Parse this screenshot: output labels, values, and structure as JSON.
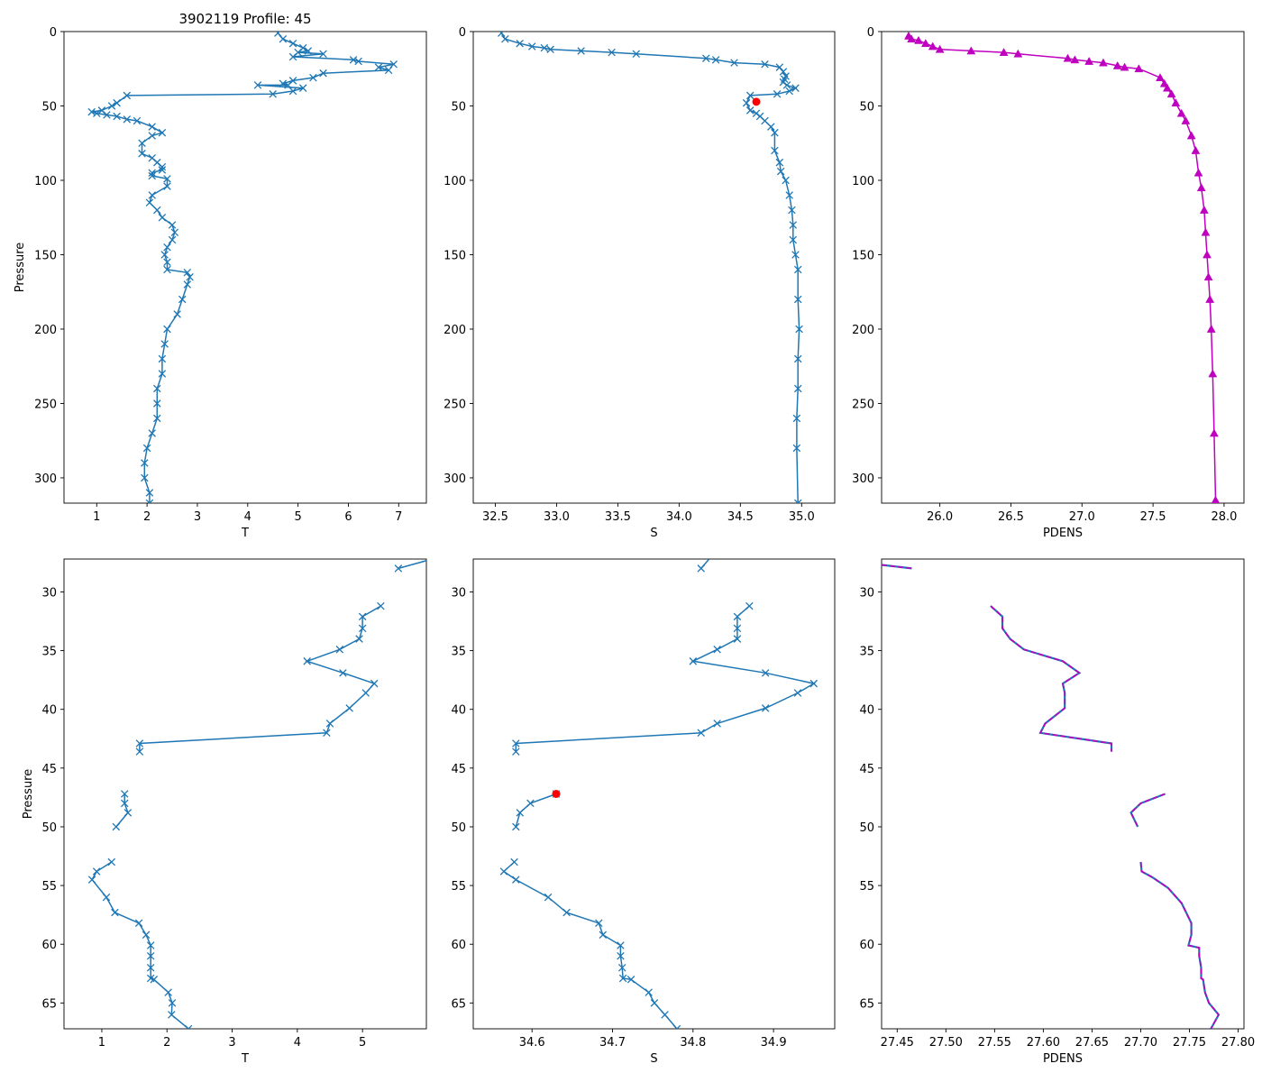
{
  "figure_title": "3902119 Profile: 45",
  "colors": {
    "line": "#1f77b4",
    "pdens": "#bf00bf",
    "flag": "#ff0000"
  },
  "chart_data": [
    {
      "id": "top-temperature",
      "type": "line",
      "marker": "x",
      "xlabel": "T",
      "ylabel": "Pressure",
      "xlim": [
        0.35,
        7.55
      ],
      "ylim": [
        317,
        0
      ],
      "xticks": [
        1,
        2,
        3,
        4,
        5,
        6,
        7
      ],
      "yticks": [
        0,
        50,
        100,
        150,
        200,
        250,
        300
      ],
      "x": [
        4.6,
        4.7,
        4.9,
        5.1,
        5.2,
        5.0,
        5.5,
        4.9,
        6.1,
        6.2,
        6.9,
        6.6,
        6.8,
        5.5,
        5.3,
        4.9,
        4.7,
        4.8,
        4.2,
        5.1,
        4.9,
        4.5,
        1.6,
        1.4,
        1.3,
        1.1,
        0.9,
        1.0,
        1.2,
        1.4,
        1.6,
        1.8,
        2.1,
        2.3,
        2.1,
        1.9,
        1.9,
        2.1,
        2.2,
        2.3,
        2.3,
        2.1,
        2.1,
        2.4,
        2.4,
        2.1,
        2.05,
        2.2,
        2.3,
        2.5,
        2.55,
        2.5,
        2.4,
        2.35,
        2.4,
        2.4,
        2.8,
        2.85,
        2.8,
        2.7,
        2.6,
        2.4,
        2.35,
        2.3,
        2.3,
        2.2,
        2.2,
        2.2,
        2.1,
        2.0,
        1.95,
        1.95,
        2.05,
        2.05
      ],
      "y": [
        1,
        5,
        8,
        11,
        13,
        14,
        15,
        17,
        19,
        20,
        22,
        24,
        26,
        28,
        31,
        33,
        35,
        36,
        36,
        38,
        40,
        42,
        43,
        48,
        50,
        53,
        54,
        55,
        56,
        57,
        59,
        60,
        64,
        68,
        70,
        75,
        82,
        85,
        88,
        91,
        93,
        95,
        97,
        99,
        104,
        110,
        115,
        120,
        125,
        130,
        135,
        140,
        145,
        150,
        155,
        160,
        162,
        165,
        170,
        180,
        190,
        200,
        210,
        220,
        230,
        240,
        250,
        260,
        270,
        280,
        290,
        300,
        310,
        317
      ]
    },
    {
      "id": "top-salinity",
      "type": "line",
      "marker": "x",
      "xlabel": "S",
      "ylabel": "",
      "xlim": [
        32.32,
        35.27
      ],
      "ylim": [
        317,
        0
      ],
      "xticks": [
        32.5,
        33.0,
        33.5,
        34.0,
        34.5,
        35.0
      ],
      "xtick_labels": [
        "32.5",
        "33.0",
        "33.5",
        "34.0",
        "34.5",
        "35.0"
      ],
      "yticks": [
        0,
        50,
        100,
        150,
        200,
        250,
        300
      ],
      "x": [
        32.55,
        32.58,
        32.7,
        32.8,
        32.9,
        32.95,
        33.2,
        33.45,
        33.65,
        34.22,
        34.3,
        34.45,
        34.7,
        34.82,
        34.85,
        34.87,
        34.86,
        34.85,
        34.88,
        34.95,
        34.9,
        34.8,
        34.58,
        34.55,
        34.58,
        34.63,
        34.66,
        34.7,
        34.75,
        34.78,
        34.78,
        34.82,
        34.83,
        34.87,
        34.9,
        34.92,
        34.93,
        34.93,
        34.95,
        34.97,
        34.97,
        34.98,
        34.97,
        34.97,
        34.96,
        34.96,
        34.97
      ],
      "y": [
        1,
        5,
        8,
        10,
        11,
        12,
        13,
        14,
        15,
        18,
        19,
        21,
        22,
        24,
        27,
        30,
        32,
        34,
        36,
        38,
        40,
        42,
        43,
        48,
        53,
        55,
        57,
        60,
        64,
        68,
        80,
        88,
        94,
        100,
        110,
        120,
        130,
        140,
        150,
        160,
        180,
        200,
        220,
        240,
        260,
        280,
        317
      ],
      "flag": {
        "x": 34.63,
        "y": 47.2
      }
    },
    {
      "id": "top-density",
      "type": "scatter",
      "marker": "triangle",
      "xlabel": "PDENS",
      "ylabel": "",
      "xlim": [
        25.59,
        28.14
      ],
      "ylim": [
        317,
        0
      ],
      "xticks": [
        26.0,
        26.5,
        27.0,
        27.5,
        28.0
      ],
      "xtick_labels": [
        "26.0",
        "26.5",
        "27.0",
        "27.5",
        "28.0"
      ],
      "yticks": [
        0,
        50,
        100,
        150,
        200,
        250,
        300
      ],
      "x": [
        25.78,
        25.8,
        25.85,
        25.9,
        25.95,
        26.0,
        26.22,
        26.45,
        26.55,
        26.9,
        26.95,
        27.05,
        27.15,
        27.25,
        27.3,
        27.4,
        27.55,
        27.58,
        27.6,
        27.63,
        27.66,
        27.7,
        27.73,
        27.77,
        27.8,
        27.82,
        27.84,
        27.86,
        27.87,
        27.88,
        27.89,
        27.9,
        27.91,
        27.92,
        27.93,
        27.94
      ],
      "y": [
        3,
        5,
        6,
        8,
        10,
        12,
        13,
        14,
        15,
        18,
        19,
        20,
        21,
        23,
        24,
        25,
        31,
        35,
        38,
        42,
        48,
        55,
        60,
        70,
        80,
        95,
        105,
        120,
        135,
        150,
        165,
        180,
        200,
        230,
        270,
        315
      ]
    },
    {
      "id": "bottom-temperature",
      "type": "line",
      "marker": "x",
      "xlabel": "T",
      "ylabel": "Pressure",
      "xlim": [
        0.42,
        5.98
      ],
      "ylim": [
        67.2,
        27.2
      ],
      "xticks": [
        1,
        2,
        3,
        4,
        5
      ],
      "yticks": [
        30,
        35,
        40,
        45,
        50,
        55,
        60,
        65
      ],
      "segments": [
        {
          "x": [
            5.55,
            6.2
          ],
          "y": [
            28.0,
            27.0
          ],
          "marker": [
            true,
            false
          ]
        },
        {
          "x": [
            5.28,
            5.0,
            5.0,
            4.95,
            4.65,
            4.15,
            4.7,
            5.18,
            5.05,
            4.8,
            4.5,
            4.45,
            1.58,
            1.58
          ],
          "y": [
            31.2,
            32.1,
            33.1,
            34.0,
            34.9,
            35.9,
            36.9,
            37.8,
            38.6,
            39.9,
            41.2,
            42.0,
            42.9,
            43.6
          ]
        },
        {
          "x": [
            1.35,
            1.35,
            1.4,
            1.22
          ],
          "y": [
            47.2,
            48.0,
            48.8,
            50.0
          ]
        },
        {
          "x": [
            1.15,
            0.92,
            0.85,
            1.07,
            1.2,
            1.57,
            1.68,
            1.75,
            1.75,
            1.75,
            1.75,
            1.8,
            2.02,
            2.08,
            2.07,
            2.33
          ],
          "y": [
            53.0,
            53.8,
            54.5,
            56.0,
            57.3,
            58.2,
            59.2,
            60.1,
            61.0,
            62.0,
            62.9,
            63.0,
            64.1,
            65.0,
            66.0,
            67.2
          ]
        }
      ]
    },
    {
      "id": "bottom-salinity",
      "type": "line",
      "marker": "x",
      "xlabel": "S",
      "ylabel": "",
      "xlim": [
        34.527,
        34.976
      ],
      "ylim": [
        67.2,
        27.2
      ],
      "xticks": [
        34.6,
        34.7,
        34.8,
        34.9
      ],
      "xtick_labels": [
        "34.6",
        "34.7",
        "34.8",
        "34.9"
      ],
      "yticks": [
        30,
        35,
        40,
        45,
        50,
        55,
        60,
        65
      ],
      "segments": [
        {
          "x": [
            34.81,
            34.82
          ],
          "y": [
            28.0,
            27.2
          ],
          "marker": [
            true,
            false
          ]
        },
        {
          "x": [
            34.87,
            34.855,
            34.855,
            34.855,
            34.83,
            34.8,
            34.89,
            34.95,
            34.93,
            34.89,
            34.83,
            34.81,
            34.58,
            34.58
          ],
          "y": [
            31.2,
            32.1,
            33.1,
            34.0,
            34.9,
            35.9,
            36.9,
            37.8,
            38.6,
            39.9,
            41.2,
            42.0,
            42.9,
            43.6
          ]
        },
        {
          "x": [
            34.63,
            34.598,
            34.585,
            34.58
          ],
          "y": [
            47.2,
            48.0,
            48.8,
            50.0
          ]
        },
        {
          "x": [
            34.578,
            34.565,
            34.58,
            34.62,
            34.643,
            34.683,
            34.688,
            34.71,
            34.71,
            34.712,
            34.713,
            34.723,
            34.745,
            34.752,
            34.765,
            34.78
          ],
          "y": [
            53.0,
            53.8,
            54.5,
            56.0,
            57.3,
            58.2,
            59.2,
            60.1,
            61.0,
            62.0,
            62.9,
            63.0,
            64.1,
            65.0,
            66.0,
            67.2
          ]
        }
      ],
      "flag": {
        "x": 34.63,
        "y": 47.2
      }
    },
    {
      "id": "bottom-density",
      "type": "line",
      "marker": "none",
      "xlabel": "PDENS",
      "ylabel": "",
      "xlim": [
        27.434,
        27.806
      ],
      "ylim": [
        67.2,
        27.2
      ],
      "xticks": [
        27.45,
        27.5,
        27.55,
        27.6,
        27.65,
        27.7,
        27.75,
        27.8
      ],
      "xtick_labels": [
        "27.45",
        "27.50",
        "27.55",
        "27.60",
        "27.65",
        "27.70",
        "27.75",
        "27.80"
      ],
      "yticks": [
        30,
        35,
        40,
        45,
        50,
        55,
        60,
        65
      ],
      "segments": [
        {
          "x": [
            27.434,
            27.465
          ],
          "y": [
            27.7,
            28.0
          ]
        },
        {
          "x": [
            27.546,
            27.558,
            27.558,
            27.566,
            27.58,
            27.62,
            27.637,
            27.62,
            27.622,
            27.622,
            27.602,
            27.597,
            27.67,
            27.67
          ],
          "y": [
            31.2,
            32.1,
            33.1,
            34.0,
            34.9,
            35.9,
            36.9,
            37.8,
            38.6,
            39.9,
            41.2,
            42.0,
            42.9,
            43.6
          ]
        },
        {
          "x": [
            27.725,
            27.7,
            27.69,
            27.697
          ],
          "y": [
            47.2,
            48.0,
            48.8,
            50.0
          ]
        },
        {
          "x": [
            27.7,
            27.701,
            27.712,
            27.728,
            27.742,
            27.752,
            27.752,
            27.749,
            27.76,
            27.76,
            27.762,
            27.762,
            27.764,
            27.766,
            27.77,
            27.78,
            27.772
          ],
          "y": [
            53.0,
            53.8,
            54.3,
            55.2,
            56.5,
            58.2,
            59.2,
            60.1,
            60.3,
            61.0,
            62.0,
            62.9,
            63.0,
            64.1,
            65.0,
            66.0,
            67.2
          ]
        }
      ]
    }
  ]
}
